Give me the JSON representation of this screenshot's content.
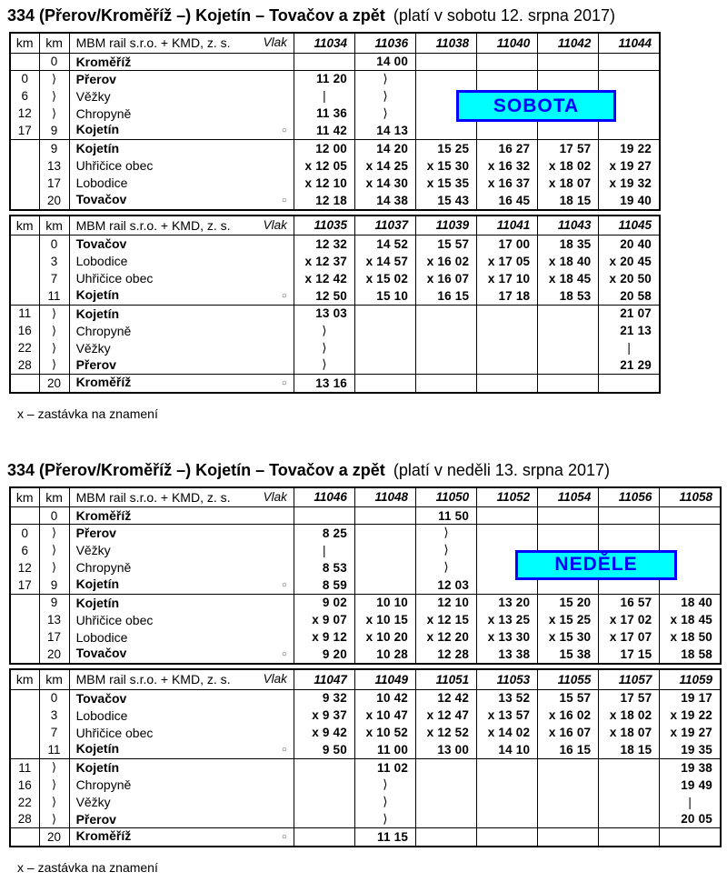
{
  "symbols": {
    "circle": "○",
    "skip": "⟩",
    "pass": "|",
    "request_stop": "x"
  },
  "tables": [
    {
      "title_main": "334 (Přerov/Kroměříž –) Kojetín – Tovačov a zpět",
      "title_validity": "(platí v sobotu 12. srpna 2017)",
      "banner": {
        "label": "SOBOTA",
        "bg_color": "#00ffff",
        "border_color": "#0000ff",
        "text_color": "#0000ff"
      },
      "footnote": "x – zastávka na znamení",
      "halves": [
        {
          "header": {
            "km1": "km",
            "km2": "km",
            "operator": "MBM rail s.r.o. + KMD, z. s.",
            "vlak_label": "Vlak",
            "trains": [
              "11034",
              "11036",
              "11038",
              "11040",
              "11042",
              "11044"
            ]
          },
          "sections": [
            {
              "rows": [
                {
                  "km1": "",
                  "km2": "0",
                  "station": "Kroměříž",
                  "major": true,
                  "circle": false,
                  "times": [
                    "",
                    "14 00",
                    "",
                    "",
                    "",
                    ""
                  ]
                }
              ]
            },
            {
              "rows": [
                {
                  "km1": "0",
                  "km2": "⟩",
                  "station": "Přerov",
                  "major": true,
                  "circle": false,
                  "times": [
                    "11 20",
                    "⟩",
                    "",
                    "",
                    "",
                    ""
                  ]
                },
                {
                  "km1": "6",
                  "km2": "⟩",
                  "station": "Věžky",
                  "major": false,
                  "circle": false,
                  "times": [
                    "|",
                    "⟩",
                    "",
                    "",
                    "",
                    ""
                  ]
                },
                {
                  "km1": "12",
                  "km2": "⟩",
                  "station": "Chropyně",
                  "major": false,
                  "circle": false,
                  "times": [
                    "11 36",
                    "⟩",
                    "",
                    "",
                    "",
                    ""
                  ]
                },
                {
                  "km1": "17",
                  "km2": "9",
                  "station": "Kojetín",
                  "major": true,
                  "circle": true,
                  "times": [
                    "11 42",
                    "14 13",
                    "",
                    "",
                    "",
                    ""
                  ]
                }
              ]
            },
            {
              "rows": [
                {
                  "km1": "",
                  "km2": "9",
                  "station": "Kojetín",
                  "major": true,
                  "circle": false,
                  "times": [
                    "12 00",
                    "14 20",
                    "15 25",
                    "16 27",
                    "17 57",
                    "19 22"
                  ]
                },
                {
                  "km1": "",
                  "km2": "13",
                  "station": "Uhřičice obec",
                  "major": false,
                  "circle": false,
                  "times": [
                    "x 12 05",
                    "x 14 25",
                    "x 15 30",
                    "x 16 32",
                    "x 18 02",
                    "x 19 27"
                  ]
                },
                {
                  "km1": "",
                  "km2": "17",
                  "station": "Lobodice",
                  "major": false,
                  "circle": false,
                  "times": [
                    "x 12 10",
                    "x 14 30",
                    "x 15 35",
                    "x 16 37",
                    "x 18 07",
                    "x 19 32"
                  ]
                },
                {
                  "km1": "",
                  "km2": "20",
                  "station": "Tovačov",
                  "major": true,
                  "circle": true,
                  "times": [
                    "12 18",
                    "14 38",
                    "15 43",
                    "16 45",
                    "18 15",
                    "19 40"
                  ]
                }
              ]
            }
          ]
        },
        {
          "header": {
            "km1": "km",
            "km2": "km",
            "operator": "MBM rail s.r.o. + KMD, z. s.",
            "vlak_label": "Vlak",
            "trains": [
              "11035",
              "11037",
              "11039",
              "11041",
              "11043",
              "11045"
            ]
          },
          "sections": [
            {
              "rows": [
                {
                  "km1": "",
                  "km2": "0",
                  "station": "Tovačov",
                  "major": true,
                  "circle": false,
                  "times": [
                    "12 32",
                    "14 52",
                    "15 57",
                    "17 00",
                    "18 35",
                    "20 40"
                  ]
                },
                {
                  "km1": "",
                  "km2": "3",
                  "station": "Lobodice",
                  "major": false,
                  "circle": false,
                  "times": [
                    "x 12 37",
                    "x 14 57",
                    "x 16 02",
                    "x 17 05",
                    "x 18 40",
                    "x 20 45"
                  ]
                },
                {
                  "km1": "",
                  "km2": "7",
                  "station": "Uhřičice obec",
                  "major": false,
                  "circle": false,
                  "times": [
                    "x 12 42",
                    "x 15 02",
                    "x 16 07",
                    "x 17 10",
                    "x 18 45",
                    "x 20 50"
                  ]
                },
                {
                  "km1": "",
                  "km2": "11",
                  "station": "Kojetín",
                  "major": true,
                  "circle": true,
                  "times": [
                    "12 50",
                    "15 10",
                    "16 15",
                    "17 18",
                    "18 53",
                    "20 58"
                  ]
                }
              ]
            },
            {
              "rows": [
                {
                  "km1": "11",
                  "km2": "⟩",
                  "station": "Kojetín",
                  "major": true,
                  "circle": false,
                  "times": [
                    "13 03",
                    "",
                    "",
                    "",
                    "",
                    "21 07"
                  ]
                },
                {
                  "km1": "16",
                  "km2": "⟩",
                  "station": "Chropyně",
                  "major": false,
                  "circle": false,
                  "times": [
                    "⟩",
                    "",
                    "",
                    "",
                    "",
                    "21 13"
                  ]
                },
                {
                  "km1": "22",
                  "km2": "⟩",
                  "station": "Věžky",
                  "major": false,
                  "circle": false,
                  "times": [
                    "⟩",
                    "",
                    "",
                    "",
                    "",
                    "|"
                  ]
                },
                {
                  "km1": "28",
                  "km2": "⟩",
                  "station": "Přerov",
                  "major": true,
                  "circle": false,
                  "times": [
                    "⟩",
                    "",
                    "",
                    "",
                    "",
                    "21 29"
                  ]
                }
              ]
            },
            {
              "rows": [
                {
                  "km1": "",
                  "km2": "20",
                  "station": "Kroměříž",
                  "major": true,
                  "circle": true,
                  "times": [
                    "13 16",
                    "",
                    "",
                    "",
                    "",
                    ""
                  ]
                }
              ]
            }
          ]
        }
      ]
    },
    {
      "title_main": "334 (Přerov/Kroměříž –) Kojetín – Tovačov a zpět",
      "title_validity": "(platí v neděli 13. srpna 2017)",
      "banner": {
        "label": "NEDĚLE",
        "bg_color": "#00ffff",
        "border_color": "#0000ff",
        "text_color": "#0000ff"
      },
      "footnote": "x – zastávka na znamení",
      "halves": [
        {
          "header": {
            "km1": "km",
            "km2": "km",
            "operator": "MBM rail s.r.o. + KMD, z. s.",
            "vlak_label": "Vlak",
            "trains": [
              "11046",
              "11048",
              "11050",
              "11052",
              "11054",
              "11056",
              "11058"
            ]
          },
          "sections": [
            {
              "rows": [
                {
                  "km1": "",
                  "km2": "0",
                  "station": "Kroměříž",
                  "major": true,
                  "circle": false,
                  "times": [
                    "",
                    "",
                    "11 50",
                    "",
                    "",
                    "",
                    ""
                  ]
                }
              ]
            },
            {
              "rows": [
                {
                  "km1": "0",
                  "km2": "⟩",
                  "station": "Přerov",
                  "major": true,
                  "circle": false,
                  "times": [
                    "8 25",
                    "",
                    "⟩",
                    "",
                    "",
                    "",
                    ""
                  ]
                },
                {
                  "km1": "6",
                  "km2": "⟩",
                  "station": "Věžky",
                  "major": false,
                  "circle": false,
                  "times": [
                    "|",
                    "",
                    "⟩",
                    "",
                    "",
                    "",
                    ""
                  ]
                },
                {
                  "km1": "12",
                  "km2": "⟩",
                  "station": "Chropyně",
                  "major": false,
                  "circle": false,
                  "times": [
                    "8 53",
                    "",
                    "⟩",
                    "",
                    "",
                    "",
                    ""
                  ]
                },
                {
                  "km1": "17",
                  "km2": "9",
                  "station": "Kojetín",
                  "major": true,
                  "circle": true,
                  "times": [
                    "8 59",
                    "",
                    "12 03",
                    "",
                    "",
                    "",
                    ""
                  ]
                }
              ]
            },
            {
              "rows": [
                {
                  "km1": "",
                  "km2": "9",
                  "station": "Kojetín",
                  "major": true,
                  "circle": false,
                  "times": [
                    "9 02",
                    "10 10",
                    "12 10",
                    "13 20",
                    "15 20",
                    "16 57",
                    "18 40"
                  ]
                },
                {
                  "km1": "",
                  "km2": "13",
                  "station": "Uhřičice obec",
                  "major": false,
                  "circle": false,
                  "times": [
                    "x 9 07",
                    "x 10 15",
                    "x 12 15",
                    "x 13 25",
                    "x 15 25",
                    "x 17 02",
                    "x 18 45"
                  ]
                },
                {
                  "km1": "",
                  "km2": "17",
                  "station": "Lobodice",
                  "major": false,
                  "circle": false,
                  "times": [
                    "x 9 12",
                    "x 10 20",
                    "x 12 20",
                    "x 13 30",
                    "x 15 30",
                    "x 17 07",
                    "x 18 50"
                  ]
                },
                {
                  "km1": "",
                  "km2": "20",
                  "station": "Tovačov",
                  "major": true,
                  "circle": true,
                  "times": [
                    "9 20",
                    "10 28",
                    "12 28",
                    "13 38",
                    "15 38",
                    "17 15",
                    "18 58"
                  ]
                }
              ]
            }
          ]
        },
        {
          "header": {
            "km1": "km",
            "km2": "km",
            "operator": "MBM rail s.r.o. + KMD, z. s.",
            "vlak_label": "Vlak",
            "trains": [
              "11047",
              "11049",
              "11051",
              "11053",
              "11055",
              "11057",
              "11059"
            ]
          },
          "sections": [
            {
              "rows": [
                {
                  "km1": "",
                  "km2": "0",
                  "station": "Tovačov",
                  "major": true,
                  "circle": false,
                  "times": [
                    "9 32",
                    "10 42",
                    "12 42",
                    "13 52",
                    "15 57",
                    "17 57",
                    "19 17"
                  ]
                },
                {
                  "km1": "",
                  "km2": "3",
                  "station": "Lobodice",
                  "major": false,
                  "circle": false,
                  "times": [
                    "x 9 37",
                    "x 10 47",
                    "x 12 47",
                    "x 13 57",
                    "x 16 02",
                    "x 18 02",
                    "x 19 22"
                  ]
                },
                {
                  "km1": "",
                  "km2": "7",
                  "station": "Uhřičice obec",
                  "major": false,
                  "circle": false,
                  "times": [
                    "x 9 42",
                    "x 10 52",
                    "x 12 52",
                    "x 14 02",
                    "x 16 07",
                    "x 18 07",
                    "x 19 27"
                  ]
                },
                {
                  "km1": "",
                  "km2": "11",
                  "station": "Kojetín",
                  "major": true,
                  "circle": true,
                  "times": [
                    "9 50",
                    "11 00",
                    "13 00",
                    "14 10",
                    "16 15",
                    "18 15",
                    "19 35"
                  ]
                }
              ]
            },
            {
              "rows": [
                {
                  "km1": "11",
                  "km2": "⟩",
                  "station": "Kojetín",
                  "major": true,
                  "circle": false,
                  "times": [
                    "",
                    "11 02",
                    "",
                    "",
                    "",
                    "",
                    "19 38"
                  ]
                },
                {
                  "km1": "16",
                  "km2": "⟩",
                  "station": "Chropyně",
                  "major": false,
                  "circle": false,
                  "times": [
                    "",
                    "⟩",
                    "",
                    "",
                    "",
                    "",
                    "19 49"
                  ]
                },
                {
                  "km1": "22",
                  "km2": "⟩",
                  "station": "Věžky",
                  "major": false,
                  "circle": false,
                  "times": [
                    "",
                    "⟩",
                    "",
                    "",
                    "",
                    "",
                    "|"
                  ]
                },
                {
                  "km1": "28",
                  "km2": "⟩",
                  "station": "Přerov",
                  "major": true,
                  "circle": false,
                  "times": [
                    "",
                    "⟩",
                    "",
                    "",
                    "",
                    "",
                    "20 05"
                  ]
                }
              ]
            },
            {
              "rows": [
                {
                  "km1": "",
                  "km2": "20",
                  "station": "Kroměříž",
                  "major": true,
                  "circle": true,
                  "times": [
                    "",
                    "11 15",
                    "",
                    "",
                    "",
                    "",
                    ""
                  ]
                }
              ]
            }
          ]
        }
      ]
    }
  ]
}
